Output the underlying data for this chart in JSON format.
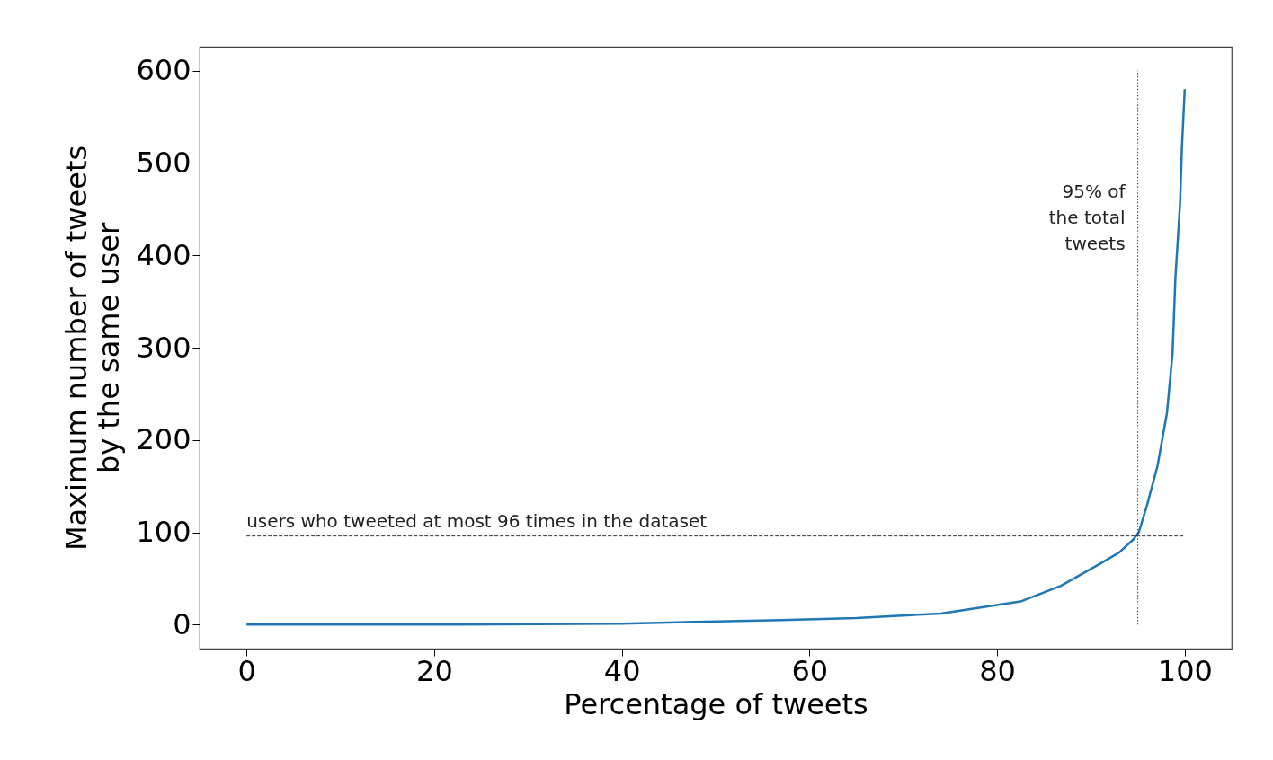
{
  "chart_data": {
    "type": "line",
    "xlabel": "Percentage of tweets",
    "ylabel": "Maximum number of tweets\nby the same user",
    "xlim": [
      -5,
      105
    ],
    "ylim": [
      -26,
      626
    ],
    "xticks": [
      0,
      20,
      40,
      60,
      80,
      100
    ],
    "yticks": [
      0,
      100,
      200,
      300,
      400,
      500,
      600
    ],
    "grid": false,
    "series": [
      {
        "color": "#1f77b4",
        "x": [
          0,
          20,
          40,
          57,
          65,
          74,
          82.5,
          86.8,
          91,
          93,
          94.5,
          95.1,
          96,
          97.1,
          98.1,
          98.7,
          99,
          99.5,
          99.7,
          100
        ],
        "values": [
          0,
          0,
          1,
          5,
          7,
          12,
          25,
          42,
          66,
          78,
          92,
          100,
          130,
          172,
          229,
          294,
          375,
          456,
          517,
          580
        ]
      }
    ],
    "ref_lines": [
      {
        "axis": "y",
        "value": 96,
        "label": "users who tweeted at most 96 times in the dataset",
        "line_style": "dashed"
      },
      {
        "axis": "x",
        "value": 95,
        "label": "95% of\nthe total\ntweets",
        "line_style": "dotted"
      }
    ]
  }
}
